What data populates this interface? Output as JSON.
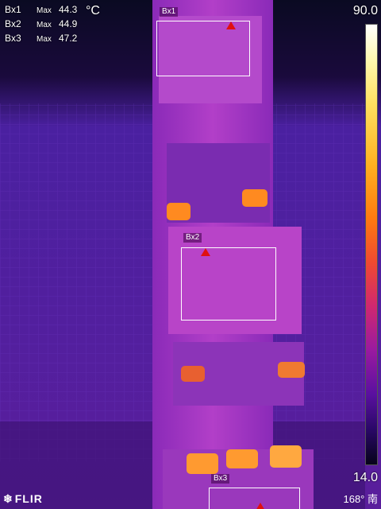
{
  "measurements": [
    {
      "label": "Bx1",
      "stat": "Max",
      "value": "44.3"
    },
    {
      "label": "Bx2",
      "stat": "Max",
      "value": "44.9"
    },
    {
      "label": "Bx3",
      "stat": "Max",
      "value": "47.2"
    }
  ],
  "unit": "°C",
  "scale": {
    "max": "90.0",
    "min": "14.0"
  },
  "boxes": {
    "bx1": "Bx1",
    "bx2": "Bx2",
    "bx3": "Bx3"
  },
  "brand": "FLIR",
  "compass": "168° 南",
  "colors": {
    "background": "#5a18a0",
    "hot": "#ff8a20",
    "marker": "#e01010"
  }
}
